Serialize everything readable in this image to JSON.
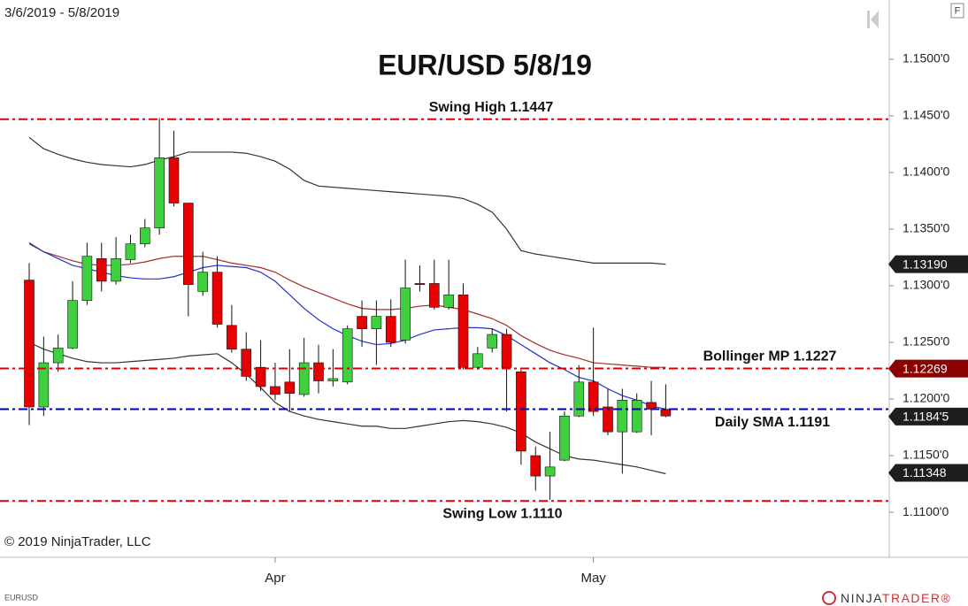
{
  "chart_data": {
    "type": "candlestick",
    "title": "EUR/USD 5/8/19",
    "subtitle": "3/6/2019 - 5/8/2019",
    "categories": [
      null,
      null,
      null,
      null,
      null,
      null,
      null,
      null,
      null,
      null,
      null,
      null,
      null,
      null,
      null,
      null,
      null,
      "Apr",
      null,
      null,
      null,
      null,
      null,
      null,
      null,
      null,
      null,
      null,
      null,
      null,
      null,
      null,
      null,
      null,
      null,
      null,
      null,
      null,
      null,
      "May",
      null,
      null,
      null,
      null,
      null
    ],
    "open": [
      1.1305,
      1.1193,
      1.1232,
      1.1245,
      1.1287,
      1.1324,
      1.1304,
      1.1323,
      1.1337,
      1.1351,
      1.1413,
      1.1373,
      1.1295,
      1.1312,
      1.1265,
      1.1244,
      1.1228,
      1.1211,
      1.1215,
      1.1204,
      1.1232,
      1.1216,
      1.1215,
      1.1273,
      1.1262,
      1.1273,
      1.1252,
      1.1302,
      1.1302,
      1.1281,
      1.1292,
      1.1228,
      1.1245,
      1.1257,
      1.1224,
      1.115,
      1.1132,
      1.1146,
      1.1185,
      1.1215,
      1.1193,
      1.1171,
      1.1171,
      1.1197,
      1.1191
    ],
    "high": [
      1.132,
      1.1255,
      1.1257,
      1.1304,
      1.1338,
      1.1338,
      1.1343,
      1.1345,
      1.1359,
      1.1448,
      1.1437,
      1.1373,
      1.133,
      1.1326,
      1.1283,
      1.1259,
      1.1252,
      1.1232,
      1.1244,
      1.1254,
      1.1248,
      1.1244,
      1.1265,
      1.1287,
      1.1287,
      1.1288,
      1.1323,
      1.1318,
      1.1323,
      1.1323,
      1.1302,
      1.1246,
      1.1262,
      1.1262,
      1.1226,
      1.1158,
      1.1171,
      1.1189,
      1.123,
      1.1263,
      1.1209,
      1.1209,
      1.1205,
      1.1216,
      1.1213
    ],
    "low": [
      1.1177,
      1.1185,
      1.1224,
      1.1244,
      1.1283,
      1.1295,
      1.1301,
      1.132,
      1.1334,
      1.1345,
      1.137,
      1.1273,
      1.1291,
      1.1263,
      1.1241,
      1.1216,
      1.1207,
      1.1199,
      1.1189,
      1.1202,
      1.1205,
      1.1211,
      1.1213,
      1.1246,
      1.123,
      1.1246,
      1.1249,
      1.1295,
      1.1279,
      1.1279,
      1.1226,
      1.1226,
      1.1241,
      1.1189,
      1.1142,
      1.1119,
      1.1111,
      1.1145,
      1.1184,
      1.1185,
      1.1168,
      1.1134,
      1.117,
      1.1168,
      1.1184
    ],
    "close": [
      1.1193,
      1.1232,
      1.1245,
      1.1287,
      1.1326,
      1.1304,
      1.1324,
      1.1337,
      1.1351,
      1.1413,
      1.1373,
      1.1301,
      1.1312,
      1.1266,
      1.1244,
      1.122,
      1.1211,
      1.1204,
      1.1205,
      1.1232,
      1.1216,
      1.1218,
      1.1262,
      1.1262,
      1.1273,
      1.125,
      1.1298,
      1.1301,
      1.1281,
      1.1292,
      1.1228,
      1.124,
      1.1257,
      1.1228,
      1.1154,
      1.1132,
      1.114,
      1.1185,
      1.1215,
      1.1189,
      1.1171,
      1.1199,
      1.1199,
      1.1191,
      1.1185
    ],
    "up_color": "#3fcf3f",
    "down_color": "#e60000",
    "series": [
      {
        "color": "#333333",
        "values": [
          1.1431,
          1.1421,
          1.1416,
          1.1412,
          1.1409,
          1.1407,
          1.1406,
          1.1405,
          1.1407,
          1.1411,
          1.1414,
          1.1418,
          1.1418,
          1.1418,
          1.1418,
          1.1417,
          1.1414,
          1.141,
          1.1403,
          1.1393,
          1.1388,
          1.1387,
          1.1386,
          1.1385,
          1.1384,
          1.1383,
          1.1382,
          1.1381,
          1.138,
          1.1379,
          1.1377,
          1.1372,
          1.1365,
          1.135,
          1.1331,
          1.1328,
          1.1326,
          1.1324,
          1.1322,
          1.132,
          1.132,
          1.132,
          1.132,
          1.132,
          1.1319
        ]
      },
      {
        "color": "#a52a2a",
        "values": [
          1.1337,
          1.133,
          1.1326,
          1.1322,
          1.1319,
          1.1318,
          1.1318,
          1.1319,
          1.1321,
          1.1324,
          1.1326,
          1.1326,
          1.1326,
          1.1323,
          1.132,
          1.1318,
          1.1316,
          1.1312,
          1.1305,
          1.1299,
          1.1294,
          1.1289,
          1.1284,
          1.128,
          1.1279,
          1.1279,
          1.128,
          1.1282,
          1.1283,
          1.1281,
          1.1279,
          1.1275,
          1.1271,
          1.1265,
          1.1256,
          1.1249,
          1.1243,
          1.1239,
          1.1236,
          1.1232,
          1.1231,
          1.123,
          1.1229,
          1.1228,
          1.1228
        ]
      },
      {
        "color": "#333333",
        "values": [
          1.125,
          1.1244,
          1.124,
          1.1236,
          1.1233,
          1.1232,
          1.1232,
          1.1233,
          1.1234,
          1.1235,
          1.1236,
          1.1238,
          1.1239,
          1.124,
          1.1232,
          1.1222,
          1.121,
          1.1197,
          1.1189,
          1.1185,
          1.1182,
          1.118,
          1.1178,
          1.1176,
          1.1176,
          1.1174,
          1.1174,
          1.1176,
          1.1178,
          1.118,
          1.1181,
          1.118,
          1.1178,
          1.1175,
          1.117,
          1.1162,
          1.1156,
          1.115,
          1.1147,
          1.1146,
          1.1144,
          1.1142,
          1.114,
          1.1137,
          1.1134
        ]
      },
      {
        "color": "#2233cc",
        "values": [
          1.1338,
          1.133,
          1.1324,
          1.1318,
          1.1315,
          1.1312,
          1.1309,
          1.1307,
          1.1306,
          1.1306,
          1.1308,
          1.1312,
          1.1316,
          1.1318,
          1.1317,
          1.1316,
          1.1312,
          1.1304,
          1.1292,
          1.128,
          1.127,
          1.1262,
          1.1256,
          1.1251,
          1.1248,
          1.1249,
          1.1252,
          1.1257,
          1.1261,
          1.1262,
          1.1263,
          1.1263,
          1.1262,
          1.1256,
          1.1248,
          1.124,
          1.1232,
          1.1226,
          1.1219,
          1.1216,
          1.1209,
          1.1203,
          1.1199,
          1.1194,
          1.1191
        ]
      }
    ],
    "ylim": [
      1.10602,
      1.15523
    ],
    "yticks": [
      {
        "value": 1.11,
        "label": "1.1100'0"
      },
      {
        "value": 1.115,
        "label": "1.1150'0"
      },
      {
        "value": 1.12,
        "label": "1.1200'0"
      },
      {
        "value": 1.125,
        "label": "1.1250'0"
      },
      {
        "value": 1.13,
        "label": "1.1300'0"
      },
      {
        "value": 1.135,
        "label": "1.1350'0"
      },
      {
        "value": 1.14,
        "label": "1.1400'0"
      },
      {
        "value": 1.145,
        "label": "1.1450'0"
      },
      {
        "value": 1.15,
        "label": "1.1500'0"
      }
    ],
    "hlines": [
      {
        "label": "Swing High 1.1447",
        "value": 1.1447,
        "color": "#dd0000"
      },
      {
        "label": "Bollinger MP 1.1227",
        "value": 1.1227,
        "color": "#dd0000"
      },
      {
        "label": "Daily SMA 1.1191",
        "value": 1.1191,
        "color": "#0000aa"
      },
      {
        "label": "Swing Low 1.1110",
        "value": 1.111,
        "color": "#dd0000"
      }
    ],
    "price_markers": [
      {
        "value": 1.1319,
        "label": "1.13190",
        "color": "#1e1e1e"
      },
      {
        "value": 1.12269,
        "label": "1.12269",
        "color": "#8b0000"
      },
      {
        "value": 1.11845,
        "label": "1.1184'5",
        "color": "#1e1e1e"
      },
      {
        "value": 1.11348,
        "label": "1.11348",
        "color": "#1e1e1e"
      }
    ]
  },
  "footer": {
    "copyright": "© 2019 NinjaTrader, LLC",
    "symbol": "EURUSD",
    "brand_a": "NINJA",
    "brand_b": "TRADER®"
  },
  "toolbar": {
    "button": "F"
  }
}
